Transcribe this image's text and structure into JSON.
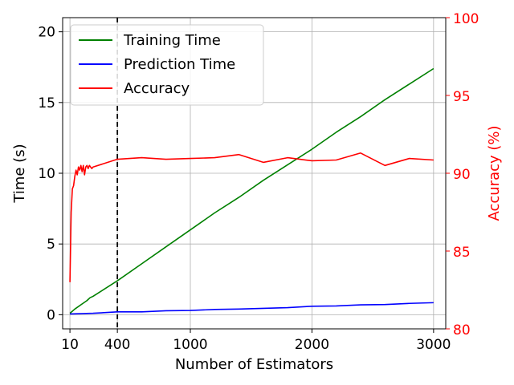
{
  "chart_data": {
    "type": "line",
    "xlabel": "Number of Estimators",
    "ylabel_left": "Time (s)",
    "ylabel_right": "Accuracy (%)",
    "xlim": [
      -50,
      3100
    ],
    "ylim_left": [
      -1,
      21
    ],
    "ylim_right": [
      80,
      100
    ],
    "xticks": [
      10,
      400,
      1000,
      2000,
      3000
    ],
    "yticks_left": [
      0,
      5,
      10,
      15,
      20
    ],
    "yticks_right": [
      80,
      85,
      90,
      95,
      100
    ],
    "grid": true,
    "legend_position": "top-left",
    "vline_x": 400,
    "colors": {
      "training": "#008000",
      "prediction": "#0000ff",
      "accuracy": "#ff0000",
      "right_axis": "#ff0000",
      "vline": "#000000"
    },
    "series": [
      {
        "name": "Training Time",
        "axis": "left",
        "x": [
          10,
          50,
          100,
          150,
          175,
          200,
          400,
          600,
          800,
          1000,
          1200,
          1400,
          1600,
          1800,
          2000,
          2200,
          2400,
          2600,
          2800,
          3000
        ],
        "y": [
          0.1,
          0.4,
          0.7,
          1.0,
          1.2,
          1.3,
          2.4,
          3.6,
          4.8,
          6.0,
          7.2,
          8.3,
          9.5,
          10.6,
          11.7,
          12.9,
          14.0,
          15.2,
          16.3,
          17.4
        ]
      },
      {
        "name": "Prediction Time",
        "axis": "left",
        "x": [
          10,
          200,
          400,
          600,
          800,
          1000,
          1200,
          1400,
          1600,
          1800,
          2000,
          2200,
          2400,
          2600,
          2800,
          3000
        ],
        "y": [
          0.05,
          0.1,
          0.2,
          0.2,
          0.28,
          0.3,
          0.37,
          0.4,
          0.45,
          0.5,
          0.6,
          0.62,
          0.7,
          0.72,
          0.8,
          0.85
        ]
      },
      {
        "name": "Accuracy",
        "axis": "right",
        "x": [
          10,
          20,
          30,
          40,
          50,
          60,
          70,
          80,
          90,
          100,
          110,
          120,
          130,
          140,
          150,
          160,
          170,
          180,
          190,
          200,
          400,
          600,
          800,
          1000,
          1200,
          1400,
          1600,
          1800,
          2000,
          2200,
          2400,
          2600,
          2800,
          3000
        ],
        "y": [
          83.0,
          87.5,
          89.0,
          89.2,
          89.8,
          90.2,
          89.9,
          90.4,
          90.2,
          90.5,
          90.1,
          90.5,
          89.9,
          90.4,
          90.5,
          90.3,
          90.5,
          90.4,
          90.3,
          90.4,
          90.9,
          91.0,
          90.9,
          90.95,
          91.0,
          91.2,
          90.7,
          91.0,
          90.8,
          90.85,
          91.3,
          90.5,
          90.95,
          90.85
        ]
      }
    ]
  }
}
